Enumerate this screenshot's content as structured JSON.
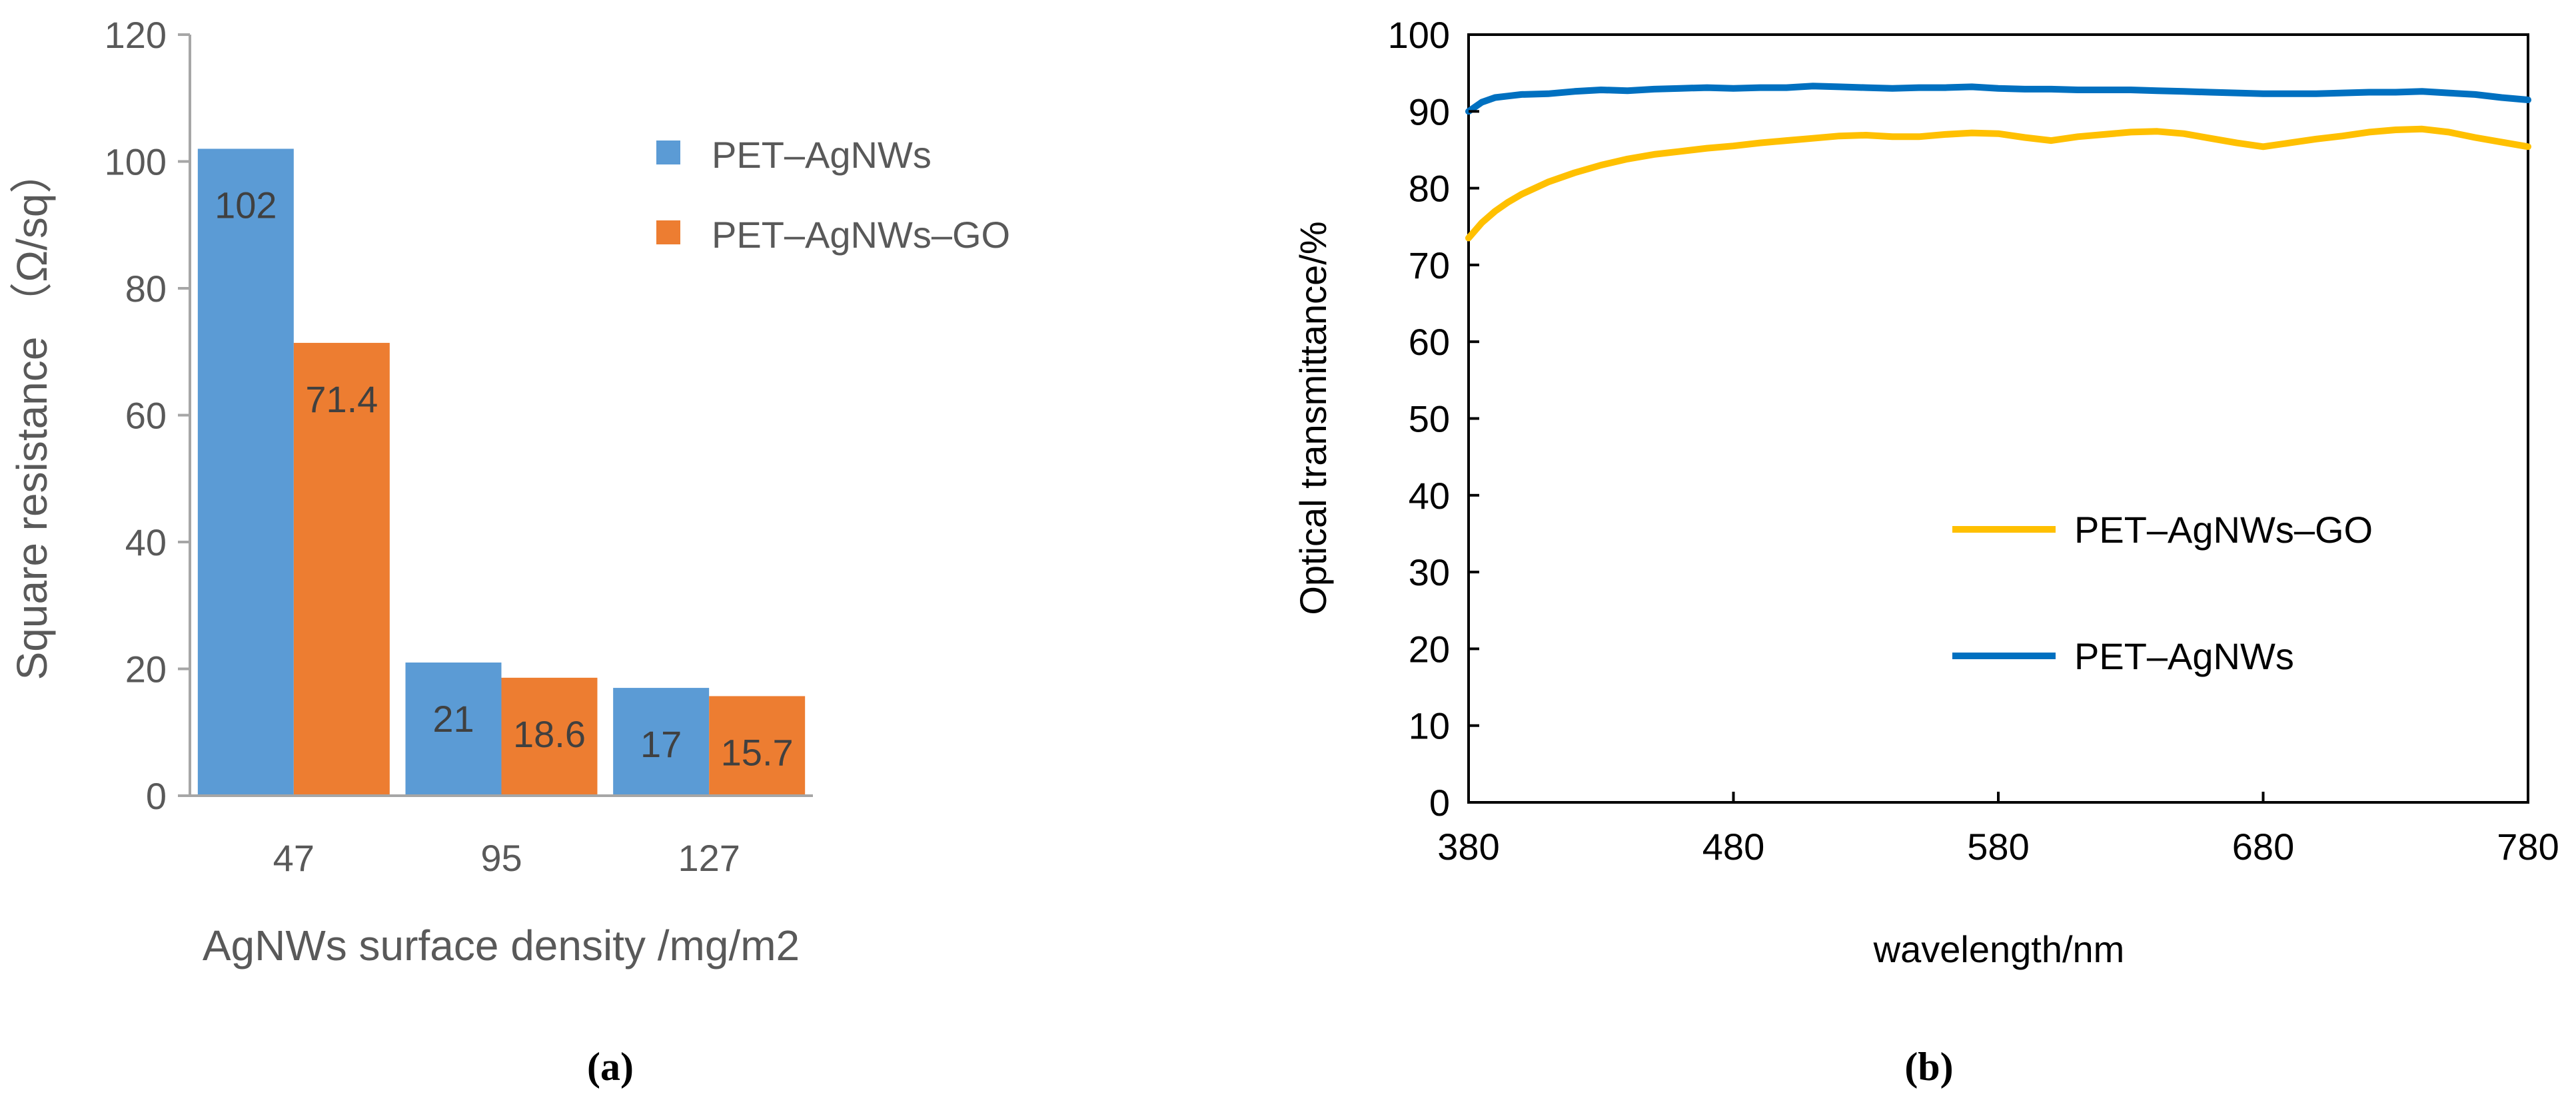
{
  "chart_data": [
    {
      "type": "bar",
      "panel_label": "(a)",
      "xlabel": "AgNWs surface density /mg/m2",
      "ylabel": "Square resistance （Ω/sq）",
      "ylim": [
        0,
        120
      ],
      "yticks": [
        0,
        20,
        40,
        60,
        80,
        100,
        120
      ],
      "categories": [
        "47",
        "95",
        "127"
      ],
      "series": [
        {
          "name": "PET–AgNWs",
          "color": "#5B9BD5",
          "values": [
            102,
            21,
            17
          ],
          "labels": [
            "102",
            "21",
            "17"
          ]
        },
        {
          "name": "PET–AgNWs–GO",
          "color": "#ED7D31",
          "values": [
            71.4,
            18.6,
            15.7
          ],
          "labels": [
            "71.4",
            "18.6",
            "15.7"
          ]
        }
      ],
      "legend_position": "upper-right",
      "grid": false
    },
    {
      "type": "line",
      "panel_label": "(b)",
      "xlabel": "wavelength/nm",
      "ylabel": "Optical transmittance/%",
      "xlim": [
        380,
        780
      ],
      "ylim": [
        0,
        100
      ],
      "xticks": [
        380,
        480,
        580,
        680,
        780
      ],
      "yticks": [
        0,
        10,
        20,
        30,
        40,
        50,
        60,
        70,
        80,
        90,
        100
      ],
      "series": [
        {
          "name": "PET–AgNWs–GO",
          "color": "#FFC000",
          "x": [
            380,
            385,
            390,
            395,
            400,
            410,
            420,
            430,
            440,
            450,
            460,
            470,
            480,
            490,
            500,
            510,
            520,
            530,
            540,
            550,
            560,
            570,
            580,
            590,
            600,
            610,
            620,
            630,
            640,
            650,
            660,
            670,
            680,
            690,
            700,
            710,
            720,
            730,
            740,
            750,
            760,
            770,
            780
          ],
          "y": [
            73.5,
            75.5,
            77,
            78.2,
            79.2,
            80.8,
            82,
            83,
            83.8,
            84.4,
            84.8,
            85.2,
            85.5,
            85.9,
            86.2,
            86.5,
            86.8,
            86.9,
            86.7,
            86.7,
            87,
            87.2,
            87.1,
            86.6,
            86.2,
            86.7,
            87,
            87.3,
            87.4,
            87.1,
            86.5,
            85.9,
            85.4,
            85.9,
            86.4,
            86.8,
            87.3,
            87.6,
            87.7,
            87.3,
            86.6,
            86,
            85.4
          ]
        },
        {
          "name": "PET–AgNWs",
          "color": "#0070C0",
          "x": [
            380,
            385,
            390,
            395,
            400,
            410,
            420,
            430,
            440,
            450,
            460,
            470,
            480,
            490,
            500,
            510,
            520,
            530,
            540,
            550,
            560,
            570,
            580,
            590,
            600,
            610,
            620,
            630,
            640,
            650,
            660,
            670,
            680,
            690,
            700,
            710,
            720,
            730,
            740,
            750,
            760,
            770,
            780
          ],
          "y": [
            90,
            91.2,
            91.8,
            92,
            92.2,
            92.3,
            92.6,
            92.8,
            92.7,
            92.9,
            93,
            93.1,
            93,
            93.1,
            93.1,
            93.3,
            93.2,
            93.1,
            93,
            93.1,
            93.1,
            93.2,
            93,
            92.9,
            92.9,
            92.8,
            92.8,
            92.8,
            92.7,
            92.6,
            92.5,
            92.4,
            92.3,
            92.3,
            92.3,
            92.4,
            92.5,
            92.5,
            92.6,
            92.4,
            92.2,
            91.8,
            91.5
          ]
        }
      ],
      "legend_position": "lower-right",
      "grid": false
    }
  ]
}
